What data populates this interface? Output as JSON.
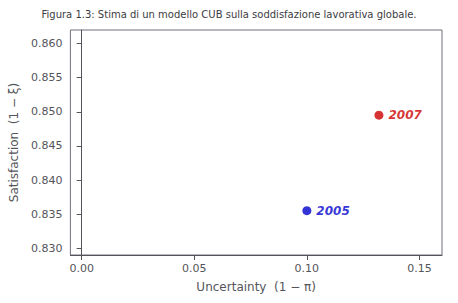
{
  "chart_data": {
    "type": "scatter",
    "title": "Figura 1.3: Stima di un modello CUB sulla soddisfazione lavorativa globale.",
    "xlabel": "Uncertainty  (1 − π)",
    "ylabel": "Satisfaction  (1 − ξ)",
    "x": [
      0.1,
      0.132
    ],
    "values": [
      0.8355,
      0.8495
    ],
    "labels": [
      "2005",
      "2007"
    ],
    "colors": [
      "#0000CC",
      "#CC0000"
    ],
    "xlim": [
      -0.005,
      0.16
    ],
    "ylim": [
      0.829,
      0.862
    ],
    "xticks": [
      {
        "value": 0,
        "label": "0.00"
      },
      0.05,
      {
        "value": 0.1,
        "label": "0.10"
      },
      0.15
    ],
    "yticks": [
      {
        "value": 0.83,
        "label": "0.830"
      },
      0.835,
      {
        "value": 0.84,
        "label": "0.840"
      },
      0.845,
      {
        "value": 0.85,
        "label": "0.850"
      },
      0.855,
      {
        "value": 0.86,
        "label": "0.860"
      }
    ],
    "grid": false
  }
}
